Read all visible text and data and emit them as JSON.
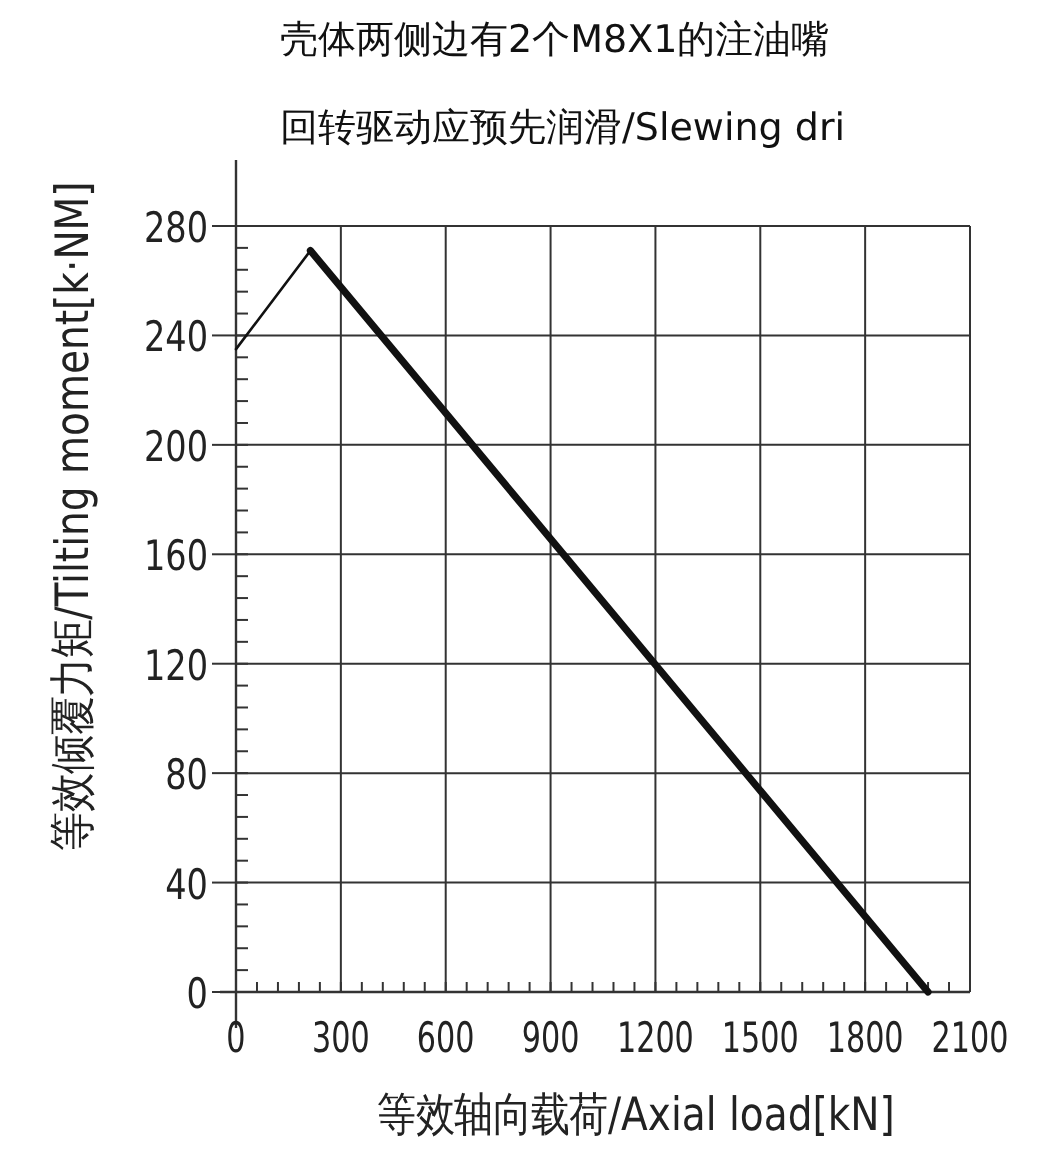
{
  "chart_data": {
    "type": "line",
    "title": "壳体两侧边有2个M8X1的注油嘴",
    "subtitle": "回转驱动应预先润滑/Slewing dri",
    "xlabel": "等效轴向载荷/Axial load[kN]",
    "ylabel": "等效倾覆力矩/Tilting moment[k·NM]",
    "series": [
      {
        "color": "#111111",
        "x": [
          0,
          213
        ],
        "values": [
          235,
          271
        ]
      },
      {
        "color": "#111111",
        "x": [
          213,
          1980
        ],
        "values": [
          271,
          0
        ]
      }
    ],
    "xlim": [
      0,
      2100
    ],
    "xticks": [
      0,
      300,
      600,
      900,
      1200,
      1500,
      1800,
      2100
    ],
    "ylim": [
      0,
      280
    ],
    "yticks": [
      0,
      40,
      80,
      120,
      160,
      200,
      240,
      280
    ],
    "grid": true,
    "marker": "none",
    "line_style": "solid"
  }
}
